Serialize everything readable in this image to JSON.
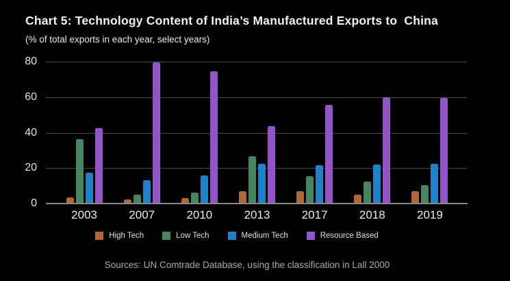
{
  "chart": {
    "title": "Chart 5: Technology Content of India’s Manufactured Exports to  China",
    "subtitle": "(% of total exports in each year, select years)",
    "source": "Sources: UN Comtrade Database, using the classification in Lall 2000"
  },
  "chart_data": {
    "type": "bar",
    "title": "Chart 5: Technology Content of India’s Manufactured Exports to  China",
    "subtitle": "(% of total exports in each year, select years)",
    "xlabel": "",
    "ylabel": "",
    "categories": [
      "2003",
      "2007",
      "2010",
      "2013",
      "2017",
      "2018",
      "2019"
    ],
    "series": [
      {
        "name": "High Tech",
        "color": "#b06a31",
        "values": [
          3.5,
          2.5,
          3,
          7,
          7,
          5,
          7
        ]
      },
      {
        "name": "Low Tech",
        "color": "#45855f",
        "values": [
          36.5,
          5,
          6,
          26.5,
          15.5,
          12.5,
          10.5
        ]
      },
      {
        "name": "Medium Tech",
        "color": "#1e82ca",
        "values": [
          17.5,
          13,
          16,
          22.5,
          21.5,
          22,
          22.5
        ]
      },
      {
        "name": "Resource Based",
        "color": "#9353c9",
        "values": [
          42.5,
          79.5,
          74.5,
          43.5,
          55.5,
          60,
          59.5
        ]
      }
    ],
    "ylim": [
      0,
      80
    ],
    "yticks": [
      0,
      20,
      40,
      60,
      80
    ],
    "grid": true,
    "legend_position": "bottom",
    "source": "Sources: UN Comtrade Database, using the classification in Lall 2000"
  },
  "colors": {
    "background": "#000000",
    "gridline": "#4a4a4a",
    "axis_line": "#8c8c8c",
    "title_text": "#f2f2f2",
    "axis_text": "#e3e3e3",
    "source_text": "#a9a9a9"
  }
}
